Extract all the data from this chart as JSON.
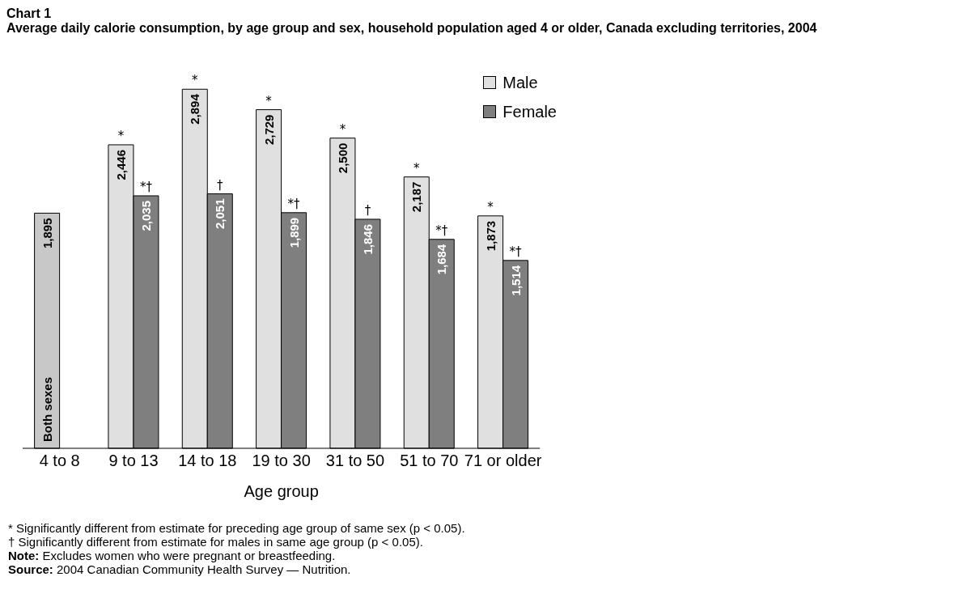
{
  "chart_data": {
    "type": "bar",
    "title": "Chart 1",
    "subtitle": "Average daily calorie consumption, by age group and sex, household population aged 4 or older, Canada excluding territories, 2004",
    "xlabel": "Age group",
    "categories": [
      "4 to 8",
      "9 to 13",
      "14 to 18",
      "19 to 30",
      "31 to 50",
      "51 to 70",
      "71 or older"
    ],
    "series": [
      {
        "name": "Both sexes",
        "color": "#c8c8c8",
        "values": [
          1895,
          null,
          null,
          null,
          null,
          null,
          null
        ],
        "value_labels": [
          "1,895",
          null,
          null,
          null,
          null,
          null,
          null
        ]
      },
      {
        "name": "Male",
        "color": "#e0e0e0",
        "values": [
          null,
          2446,
          2894,
          2729,
          2500,
          2187,
          1873
        ],
        "value_labels": [
          null,
          "2,446",
          "2,894",
          "2,729",
          "2,500",
          "2,187",
          "1,873"
        ]
      },
      {
        "name": "Female",
        "color": "#7f7f7f",
        "values": [
          null,
          2035,
          2051,
          1899,
          1846,
          1684,
          1514
        ],
        "value_labels": [
          null,
          "2,035",
          "2,051",
          "1,899",
          "1,846",
          "1,684",
          "1,514"
        ]
      }
    ],
    "legend": "top right",
    "grid": false,
    "annotations": [
      {
        "text": "*",
        "x": "9 to 13",
        "y": 2446
      },
      {
        "text": "*†",
        "x": "9 to 13",
        "y": 2035
      },
      {
        "text": "*",
        "x": "14 to 18",
        "y": 2894
      },
      {
        "text": "†",
        "x": "14 to 18",
        "y": 2051
      },
      {
        "text": "*",
        "x": "19 to 30",
        "y": 2729
      },
      {
        "text": "*†",
        "x": "19 to 30",
        "y": 1899
      },
      {
        "text": "*",
        "x": "31 to 50",
        "y": 2500
      },
      {
        "text": "†",
        "x": "31 to 50",
        "y": 1846
      },
      {
        "text": "*",
        "x": "51 to 70",
        "y": 2187
      },
      {
        "text": "*†",
        "x": "51 to 70",
        "y": 1684
      },
      {
        "text": "*",
        "x": "71 or older",
        "y": 1873
      },
      {
        "text": "*†",
        "x": "71 or older",
        "y": 1514
      },
      "* Significantly different from estimate for preceding age group of same sex (p < 0.05).",
      "† Significantly different from estimate for males in same age group (p < 0.05).",
      "Note: Excludes women who were pregnant or breastfeeding.",
      "Source: 2004 Canadian Community Health Survey — Nutrition."
    ]
  }
}
